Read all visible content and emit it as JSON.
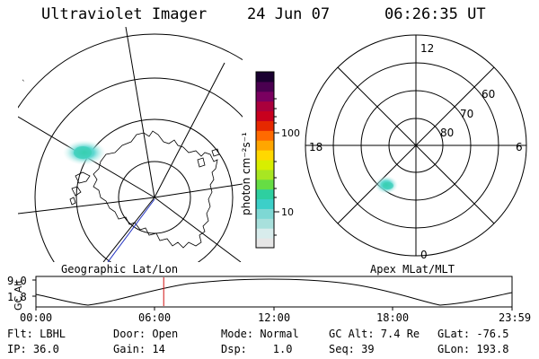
{
  "header": {
    "instrument": "Ultraviolet Imager",
    "date": "24 Jun 07",
    "time": "06:26:35 UT"
  },
  "left_panel": {
    "caption": "Geographic Lat/Lon"
  },
  "colorbar": {
    "label": "photon cm⁻²s⁻¹",
    "ticks": [
      "100",
      "10"
    ],
    "colors": [
      "#e6e6e6",
      "#d8ecec",
      "#a8e0dc",
      "#7ed8d4",
      "#3ccfc8",
      "#2ecfa0",
      "#66dd44",
      "#a8e622",
      "#d8ee00",
      "#ffd800",
      "#ffa600",
      "#ff6a00",
      "#e62800",
      "#c8001e",
      "#aa003c",
      "#7a0060",
      "#4a0050",
      "#1a0030"
    ]
  },
  "right_panel": {
    "caption": "Apex MLat/MLT",
    "mlt_labels": [
      "12",
      "18",
      "6",
      "0"
    ],
    "lat_labels": [
      "60",
      "70",
      "80"
    ]
  },
  "timeline": {
    "axis_label": "GC Alt",
    "y_ticks": [
      "9.0",
      "1.8"
    ],
    "x_ticks": [
      "00:00",
      "06:00",
      "12:00",
      "18:00",
      "23:59"
    ],
    "current_time_hours": 6.44
  },
  "footer": {
    "filter": "Flt: LBHL",
    "ip": "IP: 36.0",
    "door": "Door: Open",
    "gain": "Gain: 14",
    "mode": "Mode: Normal",
    "dsp": "Dsp:    1.0",
    "gc_alt": "GC Alt: 7.4 Re",
    "seq": "Seq: 39",
    "glat": "GLat: -76.5",
    "glon": "GLon: 193.8"
  }
}
